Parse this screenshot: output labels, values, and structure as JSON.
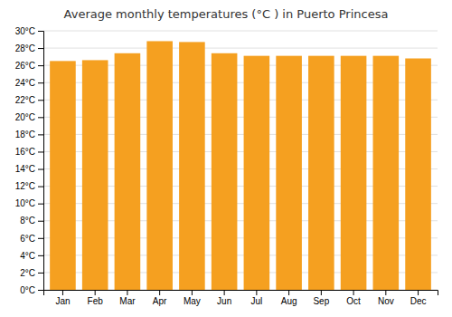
{
  "chart_data": {
    "type": "bar",
    "title": "Average monthly temperatures (°C ) in Puerto Princesa",
    "categories": [
      "Jan",
      "Feb",
      "Mar",
      "Apr",
      "May",
      "Jun",
      "Jul",
      "Aug",
      "Sep",
      "Oct",
      "Nov",
      "Dec"
    ],
    "values": [
      26.5,
      26.6,
      27.4,
      28.8,
      28.7,
      27.4,
      27.1,
      27.1,
      27.1,
      27.1,
      27.1,
      26.8
    ],
    "color": "#F5A020",
    "ylim": [
      0,
      30
    ],
    "yticks": [
      {
        "value": 0,
        "label": "0°C"
      },
      {
        "value": 2,
        "label": "2°C"
      },
      {
        "value": 4,
        "label": "4°C"
      },
      {
        "value": 6,
        "label": "6°C"
      },
      {
        "value": 8,
        "label": "8°C"
      },
      {
        "value": 10,
        "label": "10°C"
      },
      {
        "value": 12,
        "label": "12°C"
      },
      {
        "value": 14,
        "label": "14°C"
      },
      {
        "value": 16,
        "label": "16°C"
      },
      {
        "value": 18,
        "label": "18°C"
      },
      {
        "value": 20,
        "label": "20°C"
      },
      {
        "value": 22,
        "label": "22°C"
      },
      {
        "value": 24,
        "label": "24°C"
      },
      {
        "value": 26,
        "label": "26°C"
      },
      {
        "value": 28,
        "label": "28°C"
      },
      {
        "value": 30,
        "label": "30°C"
      }
    ],
    "grid": true
  }
}
